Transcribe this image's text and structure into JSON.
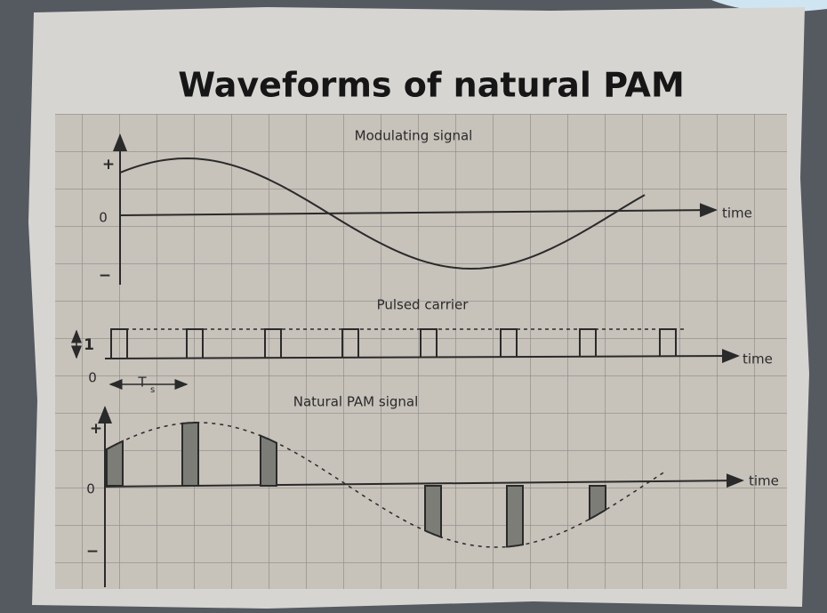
{
  "title": "Waveforms of natural PAM",
  "panels": [
    {
      "label": "Modulating signal",
      "plus": "+",
      "zero": "0",
      "minus": "−",
      "axis": "time"
    },
    {
      "label": "Pulsed carrier",
      "one": "1",
      "zero": "0",
      "period": "T",
      "period_sub": "s",
      "axis": "time"
    },
    {
      "label": "Natural PAM signal",
      "plus": "+",
      "zero": "0",
      "minus": "−",
      "axis": "time"
    }
  ]
}
